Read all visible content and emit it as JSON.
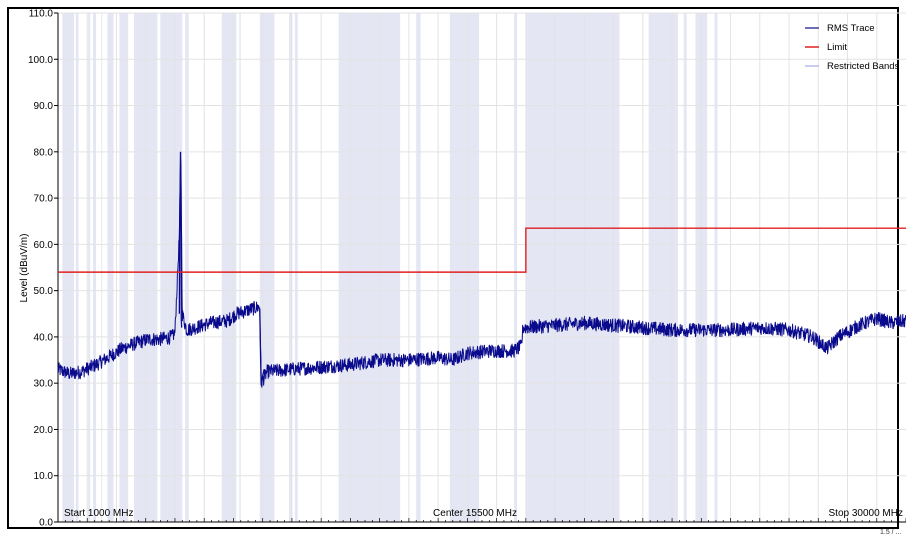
{
  "chart_data": {
    "type": "line",
    "title": "",
    "ylabel": "Level (dBuV/m)",
    "xlabel": "",
    "ylim": [
      0,
      110
    ],
    "xlim_mhz": [
      1000,
      30000
    ],
    "yticks": [
      "0.0",
      "10.0",
      "20.0",
      "30.0",
      "40.0",
      "50.0",
      "60.0",
      "70.0",
      "80.0",
      "90.0",
      "100.0",
      "110.0"
    ],
    "x_markers": {
      "start": "Start 1000 MHz",
      "center": "Center 15500 MHz",
      "stop": "Stop 30000 MHz",
      "corner": "1.5 / ..."
    },
    "legend": {
      "position": "top-right",
      "items": [
        {
          "label": "RMS Trace",
          "color": "#3a3f9c"
        },
        {
          "label": "Limit",
          "color": "#e02020"
        },
        {
          "label": "Restricted Bands",
          "color": "#b8bde8"
        }
      ]
    },
    "grid": true,
    "colors": {
      "trace": "#0a0a8c",
      "limit": "#e02020",
      "restricted_band": "#e4e6f4",
      "grid": "#e3e3e3"
    },
    "series": [
      {
        "name": "Limit",
        "points": [
          [
            1000,
            54
          ],
          [
            17000,
            54
          ],
          [
            17000,
            63.5
          ],
          [
            30000,
            63.5
          ]
        ]
      },
      {
        "name": "RMS Trace",
        "points": [
          [
            1000,
            33
          ],
          [
            1400,
            32
          ],
          [
            1800,
            32.5
          ],
          [
            2300,
            34
          ],
          [
            2700,
            35.5
          ],
          [
            3200,
            37.5
          ],
          [
            3600,
            38.5
          ],
          [
            4100,
            39.5
          ],
          [
            4500,
            39.5
          ],
          [
            4900,
            40
          ],
          [
            5000,
            41
          ],
          [
            5150,
            62
          ],
          [
            5200,
            80
          ],
          [
            5250,
            45
          ],
          [
            5400,
            41.5
          ],
          [
            5700,
            42
          ],
          [
            6200,
            43
          ],
          [
            6800,
            43.5
          ],
          [
            7100,
            45
          ],
          [
            7600,
            46
          ],
          [
            7900,
            46.5
          ],
          [
            7950,
            30
          ],
          [
            8150,
            32.5
          ],
          [
            9000,
            33
          ],
          [
            10000,
            33.5
          ],
          [
            11000,
            34
          ],
          [
            12000,
            35
          ],
          [
            13000,
            35
          ],
          [
            14000,
            35.5
          ],
          [
            14500,
            35
          ],
          [
            15000,
            36.5
          ],
          [
            15800,
            37
          ],
          [
            16600,
            37
          ],
          [
            16850,
            38
          ],
          [
            16900,
            42
          ],
          [
            18000,
            42.5
          ],
          [
            19000,
            43
          ],
          [
            20000,
            42.5
          ],
          [
            21000,
            42
          ],
          [
            22000,
            41.5
          ],
          [
            23000,
            41.5
          ],
          [
            24000,
            41.5
          ],
          [
            25000,
            42
          ],
          [
            26000,
            41.5
          ],
          [
            26800,
            40
          ],
          [
            27300,
            37.5
          ],
          [
            27700,
            40
          ],
          [
            28400,
            42.5
          ],
          [
            29000,
            44
          ],
          [
            29500,
            43
          ],
          [
            30000,
            43.5
          ]
        ],
        "noise_band_db": 1.5
      }
    ],
    "restricted_bands_mhz": [
      [
        1150,
        1550
      ],
      [
        1610,
        1700
      ],
      [
        2030,
        2100
      ],
      [
        2200,
        2300
      ],
      [
        2480,
        2500
      ],
      [
        2690,
        2900
      ],
      [
        3100,
        3400
      ],
      [
        3600,
        4400
      ],
      [
        4500,
        5250
      ],
      [
        5350,
        5470
      ],
      [
        6600,
        7100
      ],
      [
        7200,
        7250
      ],
      [
        7900,
        8400
      ],
      [
        8900,
        9000
      ],
      [
        9100,
        9200
      ],
      [
        10600,
        12700
      ],
      [
        13250,
        13400
      ],
      [
        14400,
        15400
      ],
      [
        16600,
        16700
      ],
      [
        17000,
        20200
      ],
      [
        21200,
        22200
      ],
      [
        22400,
        22500
      ],
      [
        22800,
        23200
      ],
      [
        23450,
        23550
      ]
    ]
  }
}
